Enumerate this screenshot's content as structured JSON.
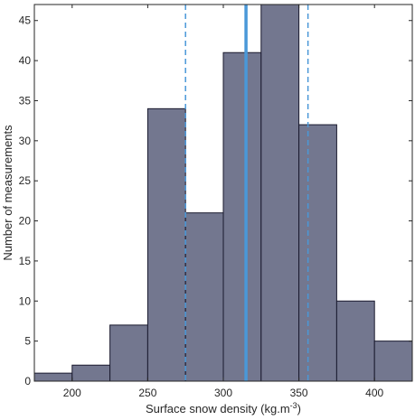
{
  "chart_data": {
    "type": "bar",
    "subtype": "histogram",
    "bin_edges": [
      175,
      200,
      225,
      250,
      275,
      300,
      325,
      350,
      375,
      400,
      425
    ],
    "values": [
      1,
      2,
      7,
      34,
      21,
      41,
      47,
      32,
      10,
      5
    ],
    "xlabel": "Surface snow density (kg.m",
    "xlabel_sup": "-3",
    "xlabel_suffix": ")",
    "ylabel": "Number of measurements",
    "xlim": [
      175,
      425
    ],
    "ylim": [
      0,
      47
    ],
    "xticks": [
      "200",
      "250",
      "300",
      "350",
      "400"
    ],
    "yticks": [
      "0",
      "5",
      "10",
      "15",
      "20",
      "25",
      "30",
      "35",
      "40",
      "45"
    ],
    "grid": false,
    "bar_color": "#73778f",
    "bar_edge_color": "#1a1a2e",
    "vlines": [
      {
        "x": 315,
        "style": "solid",
        "color": "#4a98d8"
      },
      {
        "x": 275,
        "style": "dashed",
        "color": "#4a98d8"
      },
      {
        "x": 356,
        "style": "dashed",
        "color": "#4a98d8"
      }
    ]
  }
}
